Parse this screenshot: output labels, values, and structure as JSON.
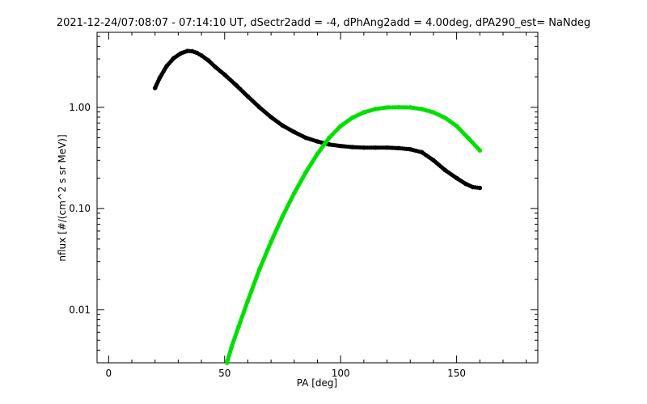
{
  "chart_data": {
    "type": "scatter",
    "title": "2021-12-24/07:08:07 - 07:14:10 UT, dSectr2add = -4, dPhAng2add = 4.00deg, dPA290_est=   NaNdeg",
    "xlabel": "PA [deg]",
    "ylabel": "nflux [#/(cm^2 s sr MeV)]",
    "xlim": [
      -5,
      185
    ],
    "ylim": [
      0.003,
      5.5
    ],
    "yscale": "log",
    "grid": false,
    "x_ticks": [
      0,
      50,
      100,
      150
    ],
    "x_tick_labels": [
      "0",
      "50",
      "100",
      "150"
    ],
    "y_ticks": [
      0.01,
      0.1,
      1.0
    ],
    "y_tick_labels": [
      "0.01",
      "0.10",
      "1.00"
    ],
    "series": [
      {
        "color": "#000000",
        "points": [
          [
            20,
            1.55
          ],
          [
            22,
            1.95
          ],
          [
            25,
            2.55
          ],
          [
            28,
            3.05
          ],
          [
            31,
            3.4
          ],
          [
            34,
            3.6
          ],
          [
            36,
            3.58
          ],
          [
            38,
            3.45
          ],
          [
            40,
            3.25
          ],
          [
            43,
            2.9
          ],
          [
            46,
            2.5
          ],
          [
            50,
            2.1
          ],
          [
            55,
            1.65
          ],
          [
            60,
            1.28
          ],
          [
            65,
            1.0
          ],
          [
            70,
            0.8
          ],
          [
            75,
            0.66
          ],
          [
            80,
            0.57
          ],
          [
            85,
            0.5
          ],
          [
            90,
            0.46
          ],
          [
            95,
            0.43
          ],
          [
            100,
            0.415
          ],
          [
            105,
            0.405
          ],
          [
            110,
            0.4
          ],
          [
            115,
            0.4
          ],
          [
            120,
            0.4
          ],
          [
            125,
            0.395
          ],
          [
            130,
            0.385
          ],
          [
            135,
            0.36
          ],
          [
            140,
            0.3
          ],
          [
            145,
            0.24
          ],
          [
            150,
            0.2
          ],
          [
            154,
            0.175
          ],
          [
            157,
            0.163
          ],
          [
            160,
            0.16
          ]
        ]
      },
      {
        "color": "#00e000",
        "points": [
          [
            51,
            0.003
          ],
          [
            53,
            0.0043
          ],
          [
            56,
            0.0068
          ],
          [
            60,
            0.0123
          ],
          [
            65,
            0.0251
          ],
          [
            70,
            0.047
          ],
          [
            75,
            0.084
          ],
          [
            80,
            0.142
          ],
          [
            85,
            0.228
          ],
          [
            90,
            0.347
          ],
          [
            95,
            0.498
          ],
          [
            100,
            0.653
          ],
          [
            105,
            0.788
          ],
          [
            110,
            0.891
          ],
          [
            115,
            0.962
          ],
          [
            120,
            0.996
          ],
          [
            125,
            1.0
          ],
          [
            130,
            0.997
          ],
          [
            135,
            0.96
          ],
          [
            140,
            0.891
          ],
          [
            145,
            0.788
          ],
          [
            150,
            0.653
          ],
          [
            155,
            0.498
          ],
          [
            160,
            0.375
          ]
        ]
      }
    ]
  }
}
